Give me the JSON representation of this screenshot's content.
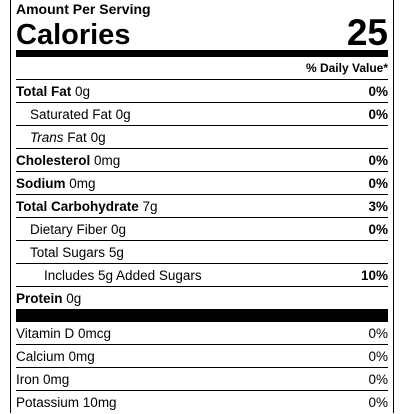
{
  "header": {
    "amount_per_serving": "Amount Per Serving",
    "calories_label": "Calories",
    "calories": 25,
    "daily_value_heading": "% Daily Value*"
  },
  "nutrients": [
    {
      "label": "Total Fat",
      "amount": "0g",
      "dv": "0%",
      "sub": [
        {
          "label": "Saturated Fat",
          "amount": "0g",
          "dv": "0%"
        },
        {
          "label_italic": "Trans",
          "label": "Fat",
          "amount": "0g"
        }
      ]
    },
    {
      "label": "Cholesterol",
      "amount": "0mg",
      "dv": "0%"
    },
    {
      "label": "Sodium",
      "amount": "0mg",
      "dv": "0%"
    },
    {
      "label": "Total Carbohydrate",
      "amount": "7g",
      "dv": "3%",
      "sub": [
        {
          "label": "Dietary Fiber",
          "amount": "0g",
          "dv": "0%"
        },
        {
          "label": "Total Sugars",
          "amount": "5g",
          "sub": [
            {
              "label": "Includes 5g Added Sugars",
              "dv": "10%"
            }
          ]
        }
      ]
    },
    {
      "label": "Protein",
      "amount": "0g"
    }
  ],
  "vitamins": [
    {
      "label": "Vitamin D",
      "amount": "0mcg",
      "dv": "0%"
    },
    {
      "label": "Calcium",
      "amount": "0mg",
      "dv": "0%"
    },
    {
      "label": "Iron",
      "amount": "0mg",
      "dv": "0%"
    },
    {
      "label": "Potassium",
      "amount": "10mg",
      "dv": "0%"
    }
  ]
}
